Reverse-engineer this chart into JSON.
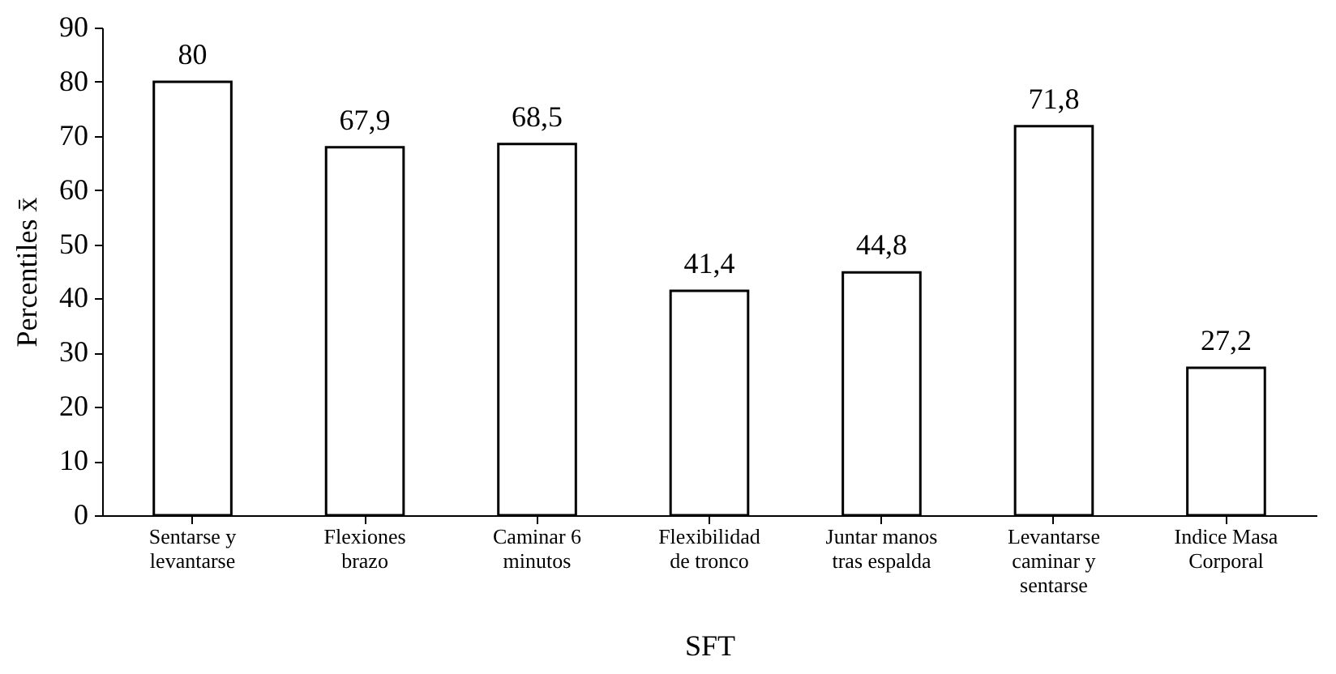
{
  "chart_data": {
    "type": "bar",
    "xlabel": "SFT",
    "ylabel": "Percentiles x̄",
    "categories": [
      "Sentarse y levantarse",
      "Flexiones brazo",
      "Caminar 6 minutos",
      "Flexibilidad de tronco",
      "Juntar manos tras espalda",
      "Levantarse caminar y sentarse",
      "Indice Masa Corporal"
    ],
    "values": [
      80,
      67.9,
      68.5,
      41.4,
      44.8,
      71.8,
      27.2
    ],
    "value_labels": [
      "80",
      "67,9",
      "68,5",
      "41,4",
      "44,8",
      "71,8",
      "27,2"
    ],
    "color": "#ffffff",
    "ylim": [
      0,
      90
    ],
    "yticks": [
      0,
      10,
      20,
      30,
      40,
      50,
      60,
      70,
      80,
      90
    ],
    "grid": false
  }
}
